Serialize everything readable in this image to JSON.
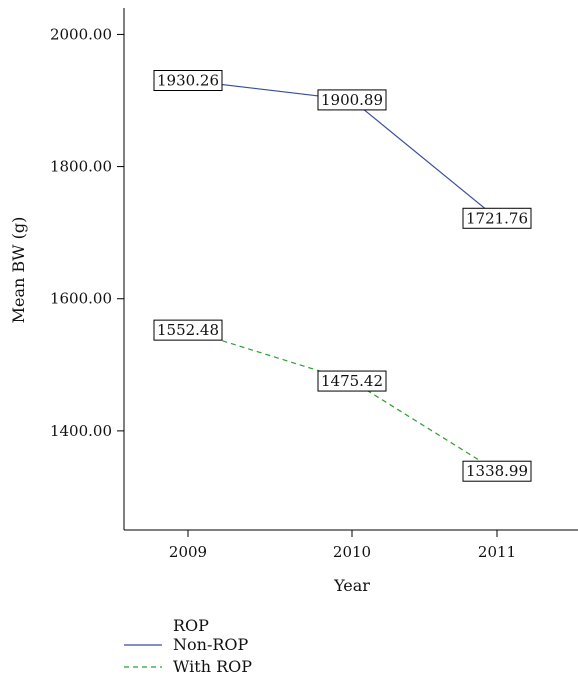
{
  "chart_data": {
    "type": "line",
    "title": "",
    "xlabel": "Year",
    "ylabel": "Mean BW (g)",
    "categories": [
      "2009",
      "2010",
      "2011"
    ],
    "yticks": [
      "1400.00",
      "1600.00",
      "1800.00",
      "2000.00"
    ],
    "ytick_values": [
      1400,
      1600,
      1800,
      2000
    ],
    "ylim": [
      1250,
      2040
    ],
    "grid": false,
    "series": [
      {
        "name": "Non-ROP",
        "values": [
          1930.26,
          1900.89,
          1721.76
        ],
        "labels": [
          "1930.26",
          "1900.89",
          "1721.76"
        ],
        "color": "#3a4ba0",
        "dash": "solid"
      },
      {
        "name": "With ROP",
        "values": [
          1552.48,
          1475.42,
          1338.99
        ],
        "labels": [
          "1552.48",
          "1475.42",
          "1338.99"
        ],
        "color": "#2ca02c",
        "dash": "dashed"
      }
    ],
    "legend": {
      "title": "ROP",
      "placement": "bottom-left"
    }
  }
}
